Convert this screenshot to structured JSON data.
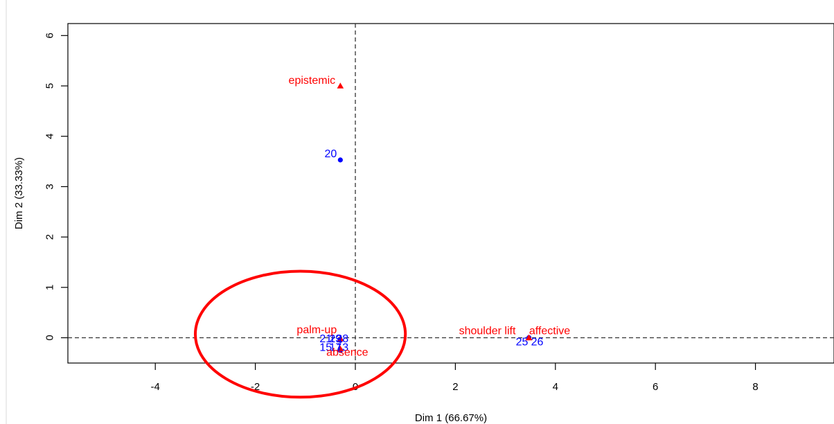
{
  "chart_data": {
    "type": "scatter",
    "xlabel": "Dim 1 (66.67%)",
    "ylabel": "Dim 2 (33.33%)",
    "xlim": [
      -5.8,
      9.3
    ],
    "ylim": [
      -0.5,
      6.3
    ],
    "x_ticks": [
      -4,
      -2,
      0,
      2,
      4,
      6,
      8
    ],
    "y_ticks": [
      0,
      1,
      2,
      3,
      4,
      5,
      6
    ],
    "reference_lines": {
      "x": 0,
      "y": 0,
      "style": "dashed"
    },
    "grid": false,
    "series": [
      {
        "color": "#0000ff",
        "marker": "circle",
        "points": [
          {
            "label": "20",
            "x": -0.3,
            "y": 3.53
          },
          {
            "label": "25",
            "x": 3.47,
            "y": 0
          },
          {
            "label": "26",
            "x": 3.47,
            "y": 0
          },
          {
            "label": "21",
            "x": -0.3,
            "y": -0.05
          },
          {
            "label": "19",
            "x": -0.3,
            "y": -0.05
          },
          {
            "label": "23",
            "x": -0.3,
            "y": -0.05
          },
          {
            "label": "28",
            "x": -0.3,
            "y": -0.05
          },
          {
            "label": "15",
            "x": -0.3,
            "y": -0.25
          },
          {
            "label": "17",
            "x": -0.3,
            "y": -0.25
          },
          {
            "label": "13",
            "x": -0.3,
            "y": -0.25
          }
        ]
      },
      {
        "color": "#ff0000",
        "marker": "triangle",
        "points": [
          {
            "label": "epistemic",
            "x": -0.3,
            "y": 5.0
          },
          {
            "label": "palm-up",
            "x": -0.3,
            "y": -0.02
          },
          {
            "label": "absence",
            "x": -0.3,
            "y": -0.22
          },
          {
            "label": "shoulder lift",
            "x": 3.47,
            "y": 0.0
          },
          {
            "label": "affective",
            "x": 3.47,
            "y": 0.0
          }
        ]
      }
    ],
    "annotations": [
      {
        "type": "ellipse",
        "color": "#ff0000",
        "center": [
          -1.1,
          0.07
        ],
        "rx_data": 2.1,
        "ry_data": 1.25
      }
    ]
  }
}
